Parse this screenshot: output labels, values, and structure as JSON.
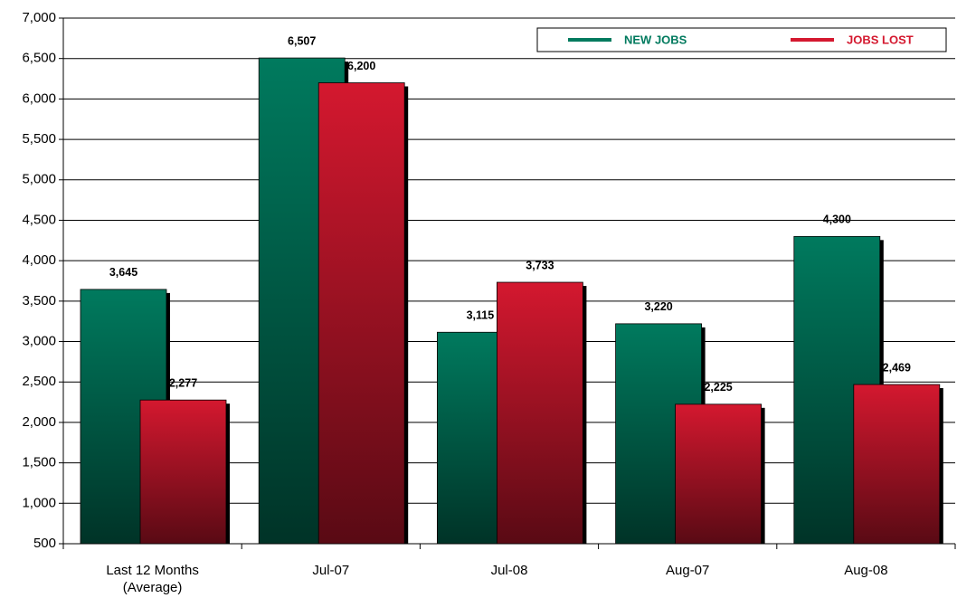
{
  "chart_data": {
    "type": "bar",
    "categories": [
      "Last 12 Months\n(Average)",
      "Jul-07",
      "Jul-08",
      "Aug-07",
      "Aug-08"
    ],
    "series": [
      {
        "name": "NEW JOBS",
        "color": "#007a5e",
        "values": [
          3645,
          6507,
          3115,
          3220,
          4300
        ],
        "value_labels": [
          "3,645",
          "6,507",
          "3,115",
          "3,220",
          "4,300"
        ]
      },
      {
        "name": "JOBS LOST",
        "color": "#d4182f",
        "values": [
          2277,
          6200,
          3733,
          2225,
          2469
        ],
        "value_labels": [
          "2,277",
          "6,200",
          "3,733",
          "2,225",
          "2,469"
        ]
      }
    ],
    "ylim": [
      500,
      7000
    ],
    "yticks": [
      {
        "value": 500,
        "label": "500"
      },
      {
        "value": 1000,
        "label": "1,000"
      },
      {
        "value": 1500,
        "label": "1,500"
      },
      {
        "value": 2000,
        "label": "2,000"
      },
      {
        "value": 2500,
        "label": "2,500"
      },
      {
        "value": 3000,
        "label": "3,000"
      },
      {
        "value": 3500,
        "label": "3,500"
      },
      {
        "value": 4000,
        "label": "4,000"
      },
      {
        "value": 4500,
        "label": "4,500"
      },
      {
        "value": 5000,
        "label": "5,000"
      },
      {
        "value": 5500,
        "label": "5,500"
      },
      {
        "value": 6000,
        "label": "6,000"
      },
      {
        "value": 6500,
        "label": "6,500"
      },
      {
        "value": 7000,
        "label": "7,000"
      }
    ],
    "grid": true,
    "legend": "top-right"
  }
}
